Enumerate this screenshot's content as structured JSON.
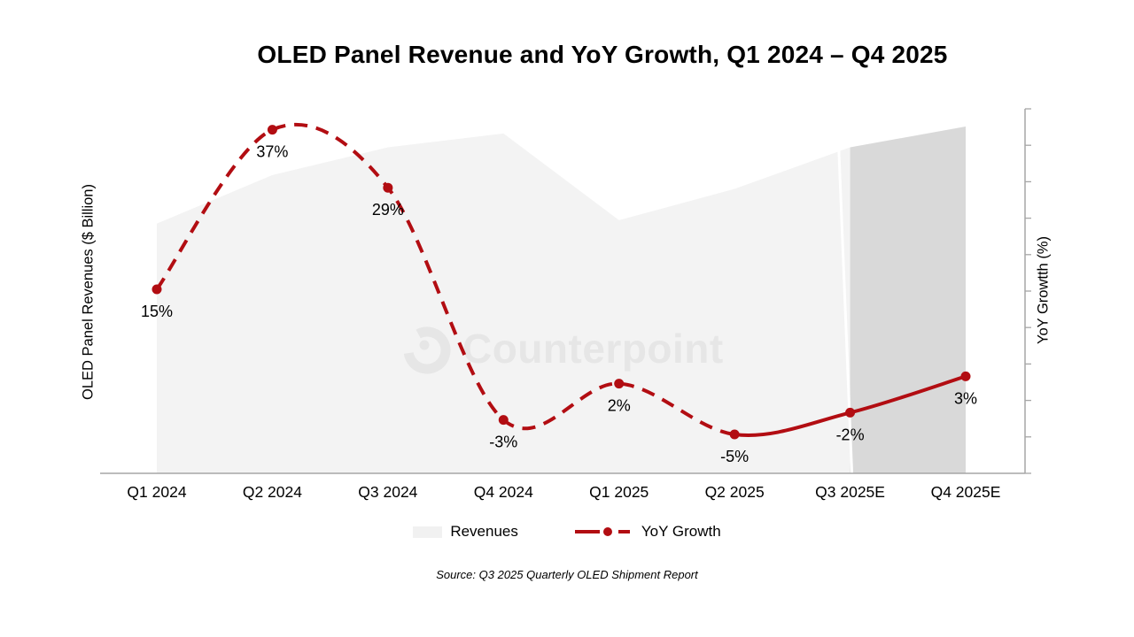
{
  "title": "OLED Panel Revenue and YoY Growth, Q1 2024 – Q4 2025",
  "left_axis_label": "OLED Panel Revenues ($ Billion)",
  "right_axis_label": "YoY Growtth (%)",
  "watermark": "Counterpoint",
  "legend": {
    "revenues": "Revenues",
    "yoy": "YoY Growth"
  },
  "source": "Source: Q3 2025 Quarterly OLED Shipment Report",
  "colors": {
    "line_red": "#b20d12",
    "area_actual": "#f3f3f3",
    "area_forecast": "#d9d9d9",
    "axis_gray": "#a6a6a6",
    "watermark_gray": "#e6e6e6",
    "label_black": "#000000"
  },
  "chart_data": {
    "type": "combo (area + line)",
    "title": "OLED Panel Revenue and YoY Growth, Q1 2024 – Q4 2025",
    "categories": [
      "Q1 2024",
      "Q2 2024",
      "Q3 2024",
      "Q4 2024",
      "Q1 2025",
      "Q2 2025",
      "Q3 2025E",
      "Q4 2025E"
    ],
    "series": [
      {
        "name": "Revenues",
        "type": "area",
        "axis": "left",
        "values_relative_height": [
          0.72,
          0.86,
          0.94,
          0.98,
          0.73,
          0.82,
          0.94,
          1.0
        ],
        "forecast_from_index": 6
      },
      {
        "name": "YoY Growth",
        "type": "line",
        "axis": "right",
        "values_pct": [
          15,
          37,
          29,
          -3,
          2,
          -5,
          -2,
          3
        ],
        "point_labels": [
          "15%",
          "37%",
          "29%",
          "-3%",
          "2%",
          "-5%",
          "-2%",
          "3%"
        ],
        "line_style": "dashed for actuals, solid from Q2 2025 onward",
        "solid_from_index": 5
      }
    ],
    "xlabel": "",
    "left_ylabel": "OLED Panel Revenues ($ Billion)",
    "right_ylabel": "YoY Growtth (%)",
    "right_ylim": [
      -10,
      40
    ],
    "right_tick_step_pct": 5,
    "grid": false,
    "legend_position": "bottom",
    "source": "Source: Q3 2025 Quarterly OLED Shipment Report"
  }
}
